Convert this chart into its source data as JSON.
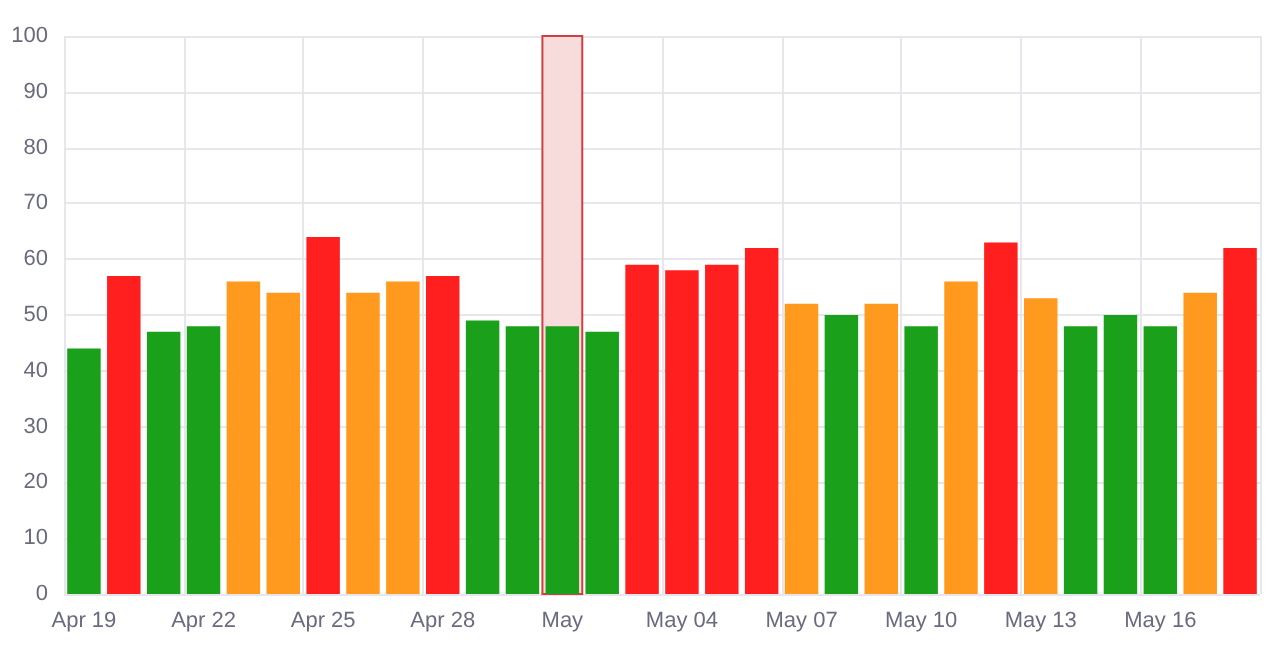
{
  "chart_data": {
    "type": "bar",
    "categories": [
      "Apr 19",
      null,
      null,
      "Apr 22",
      null,
      null,
      "Apr 25",
      null,
      null,
      "Apr 28",
      null,
      null,
      "May",
      null,
      null,
      "May 04",
      null,
      null,
      "May 07",
      null,
      null,
      "May 10",
      null,
      null,
      "May 13",
      null,
      null,
      "May 16",
      null,
      null
    ],
    "values": [
      44,
      57,
      47,
      48,
      56,
      54,
      64,
      54,
      56,
      57,
      49,
      48,
      48,
      47,
      59,
      58,
      59,
      62,
      52,
      50,
      52,
      48,
      56,
      63,
      53,
      48,
      50,
      48,
      54,
      62
    ],
    "colors": [
      "#1ba01b",
      "#ff1f1f",
      "#1ba01b",
      "#1ba01b",
      "#ff9a1f",
      "#ff9a1f",
      "#ff1f1f",
      "#ff9a1f",
      "#ff9a1f",
      "#ff1f1f",
      "#1ba01b",
      "#1ba01b",
      "#1ba01b",
      "#1ba01b",
      "#ff1f1f",
      "#ff1f1f",
      "#ff1f1f",
      "#ff1f1f",
      "#ff9a1f",
      "#1ba01b",
      "#ff9a1f",
      "#1ba01b",
      "#ff9a1f",
      "#ff1f1f",
      "#ff9a1f",
      "#1ba01b",
      "#1ba01b",
      "#1ba01b",
      "#ff9a1f",
      "#ff1f1f"
    ],
    "ylim": [
      0,
      100
    ],
    "yticks": [
      0,
      10,
      20,
      30,
      40,
      50,
      60,
      70,
      80,
      90,
      100
    ],
    "bands": [
      {
        "axis": "x",
        "from": "May",
        "to": "May",
        "color": "#f8dcdc"
      }
    ],
    "grid": true
  }
}
